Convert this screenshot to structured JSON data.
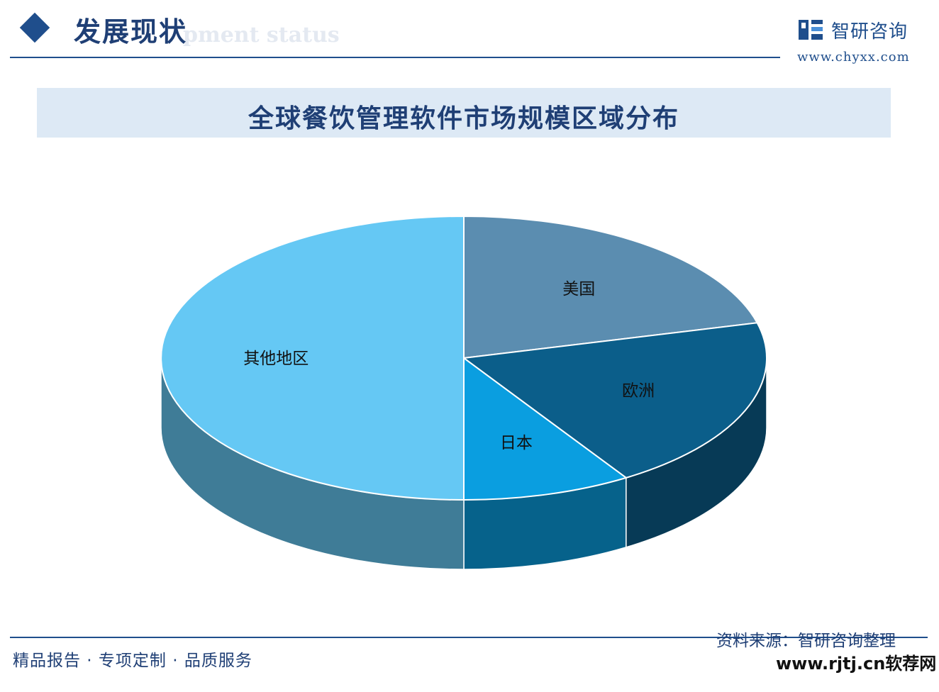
{
  "header": {
    "section_title": "发展现状",
    "section_subtitle": "pment status",
    "brand_name": "智研咨询",
    "brand_url": "www.chyxx.com"
  },
  "chart_data": {
    "type": "pie",
    "title": "全球餐饮管理软件市场规模区域分布",
    "slices": [
      {
        "label": "美国",
        "value": 21,
        "color": "#5b8db0"
      },
      {
        "label": "欧洲",
        "value": 20,
        "color": "#0b5e8a"
      },
      {
        "label": "日本",
        "value": 9,
        "color": "#0a9ee0"
      },
      {
        "label": "其他地区",
        "value": 50,
        "color": "#65c8f4"
      }
    ],
    "legend": "none",
    "style": "3d"
  },
  "footer": {
    "tagline": "精品报告 · 专项定制 · 品质服务",
    "source": "资料来源：智研咨询整理",
    "site_mark": "www.rjtj.cn软荐网"
  },
  "colors": {
    "brand": "#1f4e8c",
    "title_band": "#dde9f5"
  }
}
